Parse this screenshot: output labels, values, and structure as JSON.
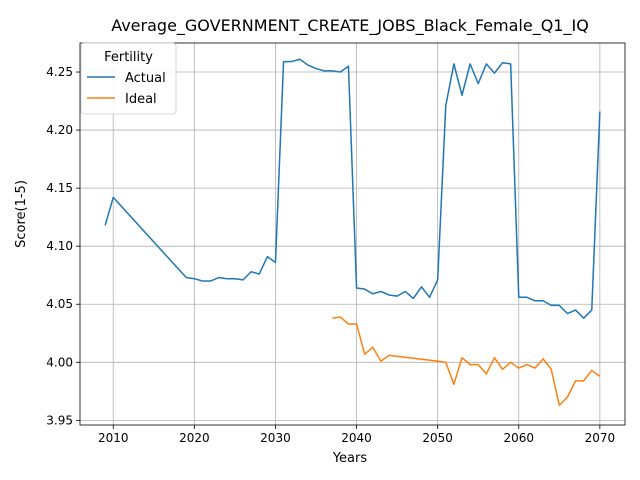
{
  "chart_data": {
    "type": "line",
    "title": "Average_GOVERNMENT_CREATE_JOBS_Black_Female_Q1_IQ",
    "xlabel": "Years",
    "ylabel": "Score(1-5)",
    "xlim": [
      2005.9,
      2073.1
    ],
    "ylim": [
      3.946,
      4.275
    ],
    "xticks": [
      2010,
      2020,
      2030,
      2040,
      2050,
      2060,
      2070
    ],
    "yticks": [
      3.95,
      4.0,
      4.05,
      4.1,
      4.15,
      4.2,
      4.25
    ],
    "ytick_labels": [
      "3.95",
      "4.00",
      "4.05",
      "4.10",
      "4.15",
      "4.20",
      "4.25"
    ],
    "grid": true,
    "legend": {
      "title": "Fertility",
      "position": "top-left"
    },
    "series": [
      {
        "name": "Actual",
        "color": "#1f77b4",
        "points": [
          [
            2009,
            4.118
          ],
          [
            2010,
            4.142
          ],
          [
            2019,
            4.073
          ],
          [
            2020,
            4.072
          ],
          [
            2021,
            4.07
          ],
          [
            2022,
            4.07
          ],
          [
            2023,
            4.073
          ],
          [
            2024,
            4.072
          ],
          [
            2025,
            4.072
          ],
          [
            2026,
            4.071
          ],
          [
            2027,
            4.078
          ],
          [
            2028,
            4.076
          ],
          [
            2029,
            4.091
          ],
          [
            2030,
            4.086
          ],
          [
            2031,
            4.259
          ],
          [
            2032,
            4.259
          ],
          [
            2033,
            4.261
          ],
          [
            2034,
            4.256
          ],
          [
            2035,
            4.253
          ],
          [
            2036,
            4.251
          ],
          [
            2037,
            4.251
          ],
          [
            2038,
            4.25
          ],
          [
            2039,
            4.255
          ],
          [
            2040,
            4.064
          ],
          [
            2041,
            4.063
          ],
          [
            2042,
            4.059
          ],
          [
            2043,
            4.061
          ],
          [
            2044,
            4.058
          ],
          [
            2045,
            4.057
          ],
          [
            2046,
            4.061
          ],
          [
            2047,
            4.055
          ],
          [
            2048,
            4.065
          ],
          [
            2049,
            4.056
          ],
          [
            2050,
            4.071
          ],
          [
            2051,
            4.221
          ],
          [
            2052,
            4.257
          ],
          [
            2053,
            4.23
          ],
          [
            2054,
            4.257
          ],
          [
            2055,
            4.24
          ],
          [
            2056,
            4.257
          ],
          [
            2057,
            4.249
          ],
          [
            2058,
            4.258
          ],
          [
            2059,
            4.257
          ],
          [
            2060,
            4.056
          ],
          [
            2061,
            4.056
          ],
          [
            2062,
            4.053
          ],
          [
            2063,
            4.053
          ],
          [
            2064,
            4.049
          ],
          [
            2065,
            4.049
          ],
          [
            2066,
            4.042
          ],
          [
            2067,
            4.045
          ],
          [
            2068,
            4.038
          ],
          [
            2069,
            4.045
          ],
          [
            2070,
            4.216
          ]
        ]
      },
      {
        "name": "Ideal",
        "color": "#ff7f0e",
        "points": [
          [
            2037,
            4.038
          ],
          [
            2038,
            4.039
          ],
          [
            2039,
            4.033
          ],
          [
            2040,
            4.033
          ],
          [
            2041,
            4.007
          ],
          [
            2042,
            4.013
          ],
          [
            2043,
            4.001
          ],
          [
            2044,
            4.006
          ],
          [
            2050,
            4.001
          ],
          [
            2051,
            4.0
          ],
          [
            2052,
            3.981
          ],
          [
            2053,
            4.004
          ],
          [
            2054,
            3.998
          ],
          [
            2055,
            3.998
          ],
          [
            2056,
            3.99
          ],
          [
            2057,
            4.004
          ],
          [
            2058,
            3.994
          ],
          [
            2059,
            4.0
          ],
          [
            2060,
            3.995
          ],
          [
            2061,
            3.998
          ],
          [
            2062,
            3.995
          ],
          [
            2063,
            4.003
          ],
          [
            2064,
            3.994
          ],
          [
            2065,
            3.963
          ],
          [
            2066,
            3.97
          ],
          [
            2067,
            3.984
          ],
          [
            2068,
            3.984
          ],
          [
            2069,
            3.993
          ],
          [
            2070,
            3.988
          ]
        ]
      }
    ]
  }
}
